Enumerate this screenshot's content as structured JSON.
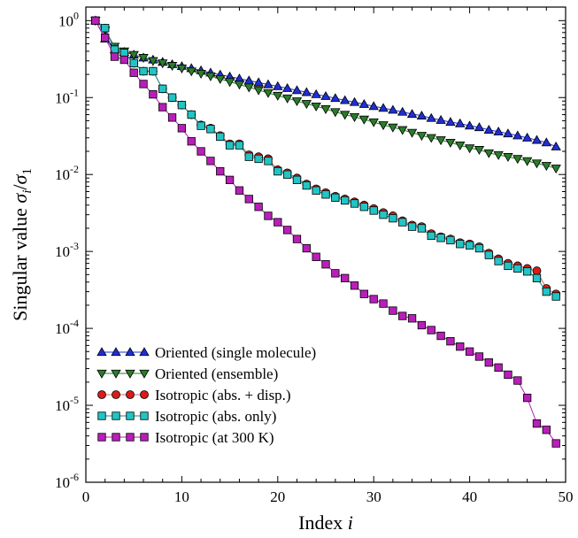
{
  "chart_data": {
    "type": "line",
    "xlabel": "Index",
    "xlabel_var": "i",
    "ylabel": "Singular value",
    "ylabel_num": "σ",
    "ylabel_num_sub": "i",
    "ylabel_slash": "/",
    "ylabel_den": "σ",
    "ylabel_den_sub": "1",
    "xlim": [
      0,
      50
    ],
    "ylim": [
      1e-06,
      1.5
    ],
    "yscale": "log",
    "xticks": [
      "0",
      "10",
      "20",
      "30",
      "40",
      "50"
    ],
    "ytick_base": "10",
    "yticks": [
      "0",
      "-1",
      "-2",
      "-3",
      "-4",
      "-5",
      "-6"
    ],
    "grid": false,
    "legend_position": "lower-left",
    "series": [
      {
        "name": "Oriented (single molecule)",
        "marker": "triangle-up",
        "color": "#1f2fd6",
        "line_color": "#1f2fd6",
        "x": [
          1,
          2,
          3,
          4,
          5,
          6,
          7,
          8,
          9,
          10,
          11,
          12,
          13,
          14,
          15,
          16,
          17,
          18,
          19,
          20,
          21,
          22,
          23,
          24,
          25,
          26,
          27,
          28,
          29,
          30,
          31,
          32,
          33,
          34,
          35,
          36,
          37,
          38,
          39,
          40,
          41,
          42,
          43,
          44,
          45,
          46,
          47,
          48,
          49
        ],
        "y": [
          1.0,
          0.58,
          0.42,
          0.39,
          0.36,
          0.33,
          0.31,
          0.29,
          0.27,
          0.255,
          0.24,
          0.225,
          0.21,
          0.198,
          0.187,
          0.176,
          0.166,
          0.157,
          0.148,
          0.14,
          0.132,
          0.124,
          0.117,
          0.11,
          0.104,
          0.098,
          0.092,
          0.087,
          0.082,
          0.077,
          0.073,
          0.069,
          0.065,
          0.061,
          0.058,
          0.054,
          0.051,
          0.048,
          0.046,
          0.043,
          0.041,
          0.038,
          0.036,
          0.034,
          0.032,
          0.03,
          0.028,
          0.026,
          0.023
        ]
      },
      {
        "name": "Oriented (ensemble)",
        "marker": "triangle-down",
        "color": "#2a7d2a",
        "line_color": "#2a7d2a",
        "x": [
          1,
          2,
          3,
          4,
          5,
          6,
          7,
          8,
          9,
          10,
          11,
          12,
          13,
          14,
          15,
          16,
          17,
          18,
          19,
          20,
          21,
          22,
          23,
          24,
          25,
          26,
          27,
          28,
          29,
          30,
          31,
          32,
          33,
          34,
          35,
          36,
          37,
          38,
          39,
          40,
          41,
          42,
          43,
          44,
          45,
          46,
          47,
          48,
          49
        ],
        "y": [
          1.0,
          0.75,
          0.46,
          0.4,
          0.36,
          0.33,
          0.3,
          0.28,
          0.26,
          0.24,
          0.22,
          0.205,
          0.19,
          0.175,
          0.16,
          0.148,
          0.136,
          0.125,
          0.115,
          0.106,
          0.098,
          0.09,
          0.083,
          0.077,
          0.071,
          0.065,
          0.06,
          0.056,
          0.052,
          0.048,
          0.044,
          0.041,
          0.038,
          0.035,
          0.032,
          0.03,
          0.028,
          0.026,
          0.024,
          0.022,
          0.021,
          0.019,
          0.018,
          0.017,
          0.016,
          0.015,
          0.014,
          0.013,
          0.012
        ]
      },
      {
        "name": "Isotropic (abs. + disp.)",
        "marker": "circle",
        "color": "#dd1a1a",
        "line_color": "#c07070",
        "x": [
          1,
          2,
          3,
          4,
          5,
          6,
          7,
          8,
          9,
          10,
          11,
          12,
          13,
          14,
          15,
          16,
          17,
          18,
          19,
          20,
          21,
          22,
          23,
          24,
          25,
          26,
          27,
          28,
          29,
          30,
          31,
          32,
          33,
          34,
          35,
          36,
          37,
          38,
          39,
          40,
          41,
          42,
          43,
          44,
          45,
          46,
          47,
          48,
          49
        ],
        "y": [
          1.0,
          0.8,
          0.42,
          0.38,
          0.28,
          0.22,
          0.22,
          0.13,
          0.1,
          0.08,
          0.06,
          0.044,
          0.04,
          0.032,
          0.025,
          0.025,
          0.018,
          0.017,
          0.016,
          0.0115,
          0.0105,
          0.009,
          0.0075,
          0.0065,
          0.0058,
          0.0052,
          0.0048,
          0.0044,
          0.004,
          0.0036,
          0.0032,
          0.0029,
          0.0025,
          0.0022,
          0.0021,
          0.0017,
          0.00155,
          0.00145,
          0.0013,
          0.00125,
          0.00115,
          0.00095,
          0.0008,
          0.0007,
          0.00065,
          0.0006,
          0.00056,
          0.00033,
          0.00028
        ]
      },
      {
        "name": "Isotropic (abs. only)",
        "marker": "square",
        "color": "#22c4c4",
        "line_color": "#1a8a8a",
        "x": [
          1,
          2,
          3,
          4,
          5,
          6,
          7,
          8,
          9,
          10,
          11,
          12,
          13,
          14,
          15,
          16,
          17,
          18,
          19,
          20,
          21,
          22,
          23,
          24,
          25,
          26,
          27,
          28,
          29,
          30,
          31,
          32,
          33,
          34,
          35,
          36,
          37,
          38,
          39,
          40,
          41,
          42,
          43,
          44,
          45,
          46,
          47,
          48,
          49
        ],
        "y": [
          1.0,
          0.8,
          0.42,
          0.38,
          0.28,
          0.22,
          0.22,
          0.13,
          0.1,
          0.08,
          0.06,
          0.043,
          0.039,
          0.031,
          0.024,
          0.024,
          0.017,
          0.016,
          0.015,
          0.011,
          0.01,
          0.0085,
          0.0072,
          0.0062,
          0.0055,
          0.005,
          0.0046,
          0.0042,
          0.0038,
          0.0034,
          0.003,
          0.0027,
          0.0024,
          0.0021,
          0.002,
          0.0016,
          0.0015,
          0.0014,
          0.00125,
          0.0012,
          0.0011,
          0.0009,
          0.00075,
          0.00065,
          0.0006,
          0.00055,
          0.00045,
          0.0003,
          0.00026
        ]
      },
      {
        "name": "Isotropic (at 300 K)",
        "marker": "square",
        "color": "#b81fb8",
        "line_color": "#b81fb8",
        "x": [
          1,
          2,
          3,
          4,
          5,
          6,
          7,
          8,
          9,
          10,
          11,
          12,
          13,
          14,
          15,
          16,
          17,
          18,
          19,
          20,
          21,
          22,
          23,
          24,
          25,
          26,
          27,
          28,
          29,
          30,
          31,
          32,
          33,
          34,
          35,
          36,
          37,
          38,
          39,
          40,
          41,
          42,
          43,
          44,
          45,
          46,
          47,
          48,
          49
        ],
        "y": [
          1.0,
          0.6,
          0.34,
          0.31,
          0.21,
          0.15,
          0.11,
          0.075,
          0.055,
          0.04,
          0.027,
          0.02,
          0.015,
          0.011,
          0.0085,
          0.0062,
          0.0048,
          0.0038,
          0.0029,
          0.0024,
          0.0019,
          0.00145,
          0.0011,
          0.00085,
          0.00068,
          0.00052,
          0.00045,
          0.00036,
          0.00028,
          0.00024,
          0.00021,
          0.00017,
          0.000145,
          0.000135,
          0.00011,
          9.5e-05,
          8e-05,
          6.8e-05,
          5.8e-05,
          5e-05,
          4.3e-05,
          3.6e-05,
          3.1e-05,
          2.5e-05,
          2.1e-05,
          1.25e-05,
          5.8e-06,
          4.8e-06,
          3.2e-06
        ]
      }
    ]
  }
}
